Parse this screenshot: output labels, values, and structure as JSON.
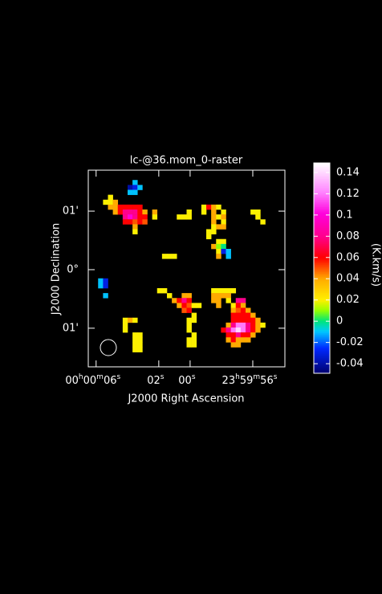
{
  "chart_data": {
    "type": "raster",
    "title": "lc-@36.mom_0-raster",
    "x_label": "J2000 Right Ascension",
    "y_label": "J2000 Declination",
    "colorbar_label": "(K.km/s)",
    "xlim": [
      6.5,
      -6.05
    ],
    "xticks": [
      {
        "value": 6,
        "label": "00h00m06s"
      },
      {
        "value": 2,
        "label": "02s"
      },
      {
        "value": 0,
        "label": "00s"
      },
      {
        "value": -4,
        "label": "23h59m56s"
      }
    ],
    "ylim": [
      -1.66,
      1.7
    ],
    "yticks": [
      {
        "value": 1,
        "label": "01'"
      },
      {
        "value": 0,
        "label": "0°"
      },
      {
        "value": -1,
        "label": "01'"
      }
    ],
    "clim": [
      -0.049,
      0.149
    ],
    "cticks": [
      0.14,
      0.12,
      0.1,
      0.08,
      0.06,
      0.04,
      0.02,
      0,
      -0.02,
      -0.04
    ],
    "cells": [
      [
        9,
        2,
        -0.01
      ],
      [
        8,
        3,
        -0.04
      ],
      [
        9,
        3,
        -0.03
      ],
      [
        10,
        3,
        -0.01
      ],
      [
        8,
        4,
        -0.01
      ],
      [
        9,
        4,
        -0.01
      ],
      [
        4,
        5,
        0.02
      ],
      [
        3,
        6,
        0.02
      ],
      [
        4,
        6,
        0.02
      ],
      [
        5,
        6,
        0.04
      ],
      [
        4,
        7,
        0.04
      ],
      [
        5,
        7,
        0.04
      ],
      [
        6,
        7,
        0.06
      ],
      [
        7,
        7,
        0.06
      ],
      [
        8,
        7,
        0.06
      ],
      [
        9,
        7,
        0.06
      ],
      [
        10,
        7,
        0.06
      ],
      [
        5,
        8,
        0.04
      ],
      [
        6,
        8,
        0.06
      ],
      [
        7,
        8,
        0.08
      ],
      [
        8,
        8,
        0.08
      ],
      [
        9,
        8,
        0.08
      ],
      [
        10,
        8,
        0.06
      ],
      [
        11,
        8,
        0.04
      ],
      [
        13,
        8,
        0.04
      ],
      [
        7,
        9,
        0.08
      ],
      [
        8,
        9,
        0.1
      ],
      [
        9,
        9,
        0.08
      ],
      [
        10,
        9,
        0.06
      ],
      [
        11,
        9,
        0.06
      ],
      [
        13,
        9,
        0.02
      ],
      [
        7,
        10,
        0.06
      ],
      [
        8,
        10,
        0.06
      ],
      [
        9,
        10,
        0.05
      ],
      [
        10,
        10,
        0.06
      ],
      [
        11,
        10,
        0.05
      ],
      [
        9,
        11,
        0.04
      ],
      [
        9,
        12,
        0.02
      ],
      [
        20,
        8,
        0.02
      ],
      [
        18,
        9,
        0.02
      ],
      [
        19,
        9,
        0.02
      ],
      [
        20,
        9,
        0.02
      ],
      [
        23,
        7,
        0.02
      ],
      [
        24,
        7,
        0.06
      ],
      [
        25,
        7,
        0.04
      ],
      [
        26,
        7,
        0.02
      ],
      [
        23,
        8,
        0.02
      ],
      [
        25,
        8,
        0.04
      ],
      [
        27,
        8,
        0.02
      ],
      [
        25,
        9,
        0.04
      ],
      [
        26,
        9,
        0.02
      ],
      [
        27,
        9,
        0.04
      ],
      [
        25,
        10,
        0.04
      ],
      [
        27,
        10,
        0.02
      ],
      [
        25,
        11,
        0.02
      ],
      [
        26,
        11,
        0.04
      ],
      [
        27,
        11,
        0.04
      ],
      [
        24,
        12,
        0.02
      ],
      [
        25,
        12,
        0.02
      ],
      [
        24,
        13,
        0.02
      ],
      [
        26,
        14,
        0.02
      ],
      [
        27,
        14,
        0.02
      ],
      [
        25,
        15,
        0.04
      ],
      [
        26,
        15,
        0.01
      ],
      [
        27,
        15,
        0
      ],
      [
        26,
        16,
        0.02
      ],
      [
        27,
        16,
        -0.03
      ],
      [
        26,
        17,
        0.04
      ],
      [
        28,
        17,
        -0.01
      ],
      [
        28,
        16,
        -0.01
      ],
      [
        33,
        8,
        0.02
      ],
      [
        34,
        8,
        0.02
      ],
      [
        34,
        9,
        0.02
      ],
      [
        35,
        10,
        0.02
      ],
      [
        15,
        17,
        0.02
      ],
      [
        16,
        17,
        0.02
      ],
      [
        17,
        17,
        0.02
      ],
      [
        2,
        22,
        -0.01
      ],
      [
        3,
        22,
        -0.03
      ],
      [
        2,
        23,
        -0.01
      ],
      [
        3,
        23,
        -0.03
      ],
      [
        3,
        25,
        -0.01
      ],
      [
        14,
        24,
        0.02
      ],
      [
        15,
        24,
        0.02
      ],
      [
        16,
        25,
        0.02
      ],
      [
        19,
        25,
        0.04
      ],
      [
        20,
        25,
        0.04
      ],
      [
        17,
        26,
        0.04
      ],
      [
        18,
        26,
        0.06
      ],
      [
        19,
        26,
        0.08
      ],
      [
        20,
        26,
        0.06
      ],
      [
        18,
        27,
        0.04
      ],
      [
        19,
        27,
        0.06
      ],
      [
        20,
        27,
        0.05
      ],
      [
        21,
        27,
        0.02
      ],
      [
        22,
        27,
        0.02
      ],
      [
        19,
        28,
        0.05
      ],
      [
        20,
        28,
        0.06
      ],
      [
        21,
        29,
        0.02
      ],
      [
        25,
        24,
        0.02
      ],
      [
        26,
        24,
        0.02
      ],
      [
        27,
        24,
        0.02
      ],
      [
        28,
        24,
        0.02
      ],
      [
        29,
        24,
        0.02
      ],
      [
        25,
        25,
        0.04
      ],
      [
        26,
        25,
        0.04
      ],
      [
        27,
        25,
        0.04
      ],
      [
        28,
        25,
        0.04
      ],
      [
        25,
        26,
        0.04
      ],
      [
        26,
        26,
        0.04
      ],
      [
        28,
        26,
        0.02
      ],
      [
        30,
        26,
        0.08
      ],
      [
        31,
        26,
        0.08
      ],
      [
        26,
        27,
        0.04
      ],
      [
        29,
        27,
        0.02
      ],
      [
        30,
        27,
        0.06
      ],
      [
        31,
        27,
        0.04
      ],
      [
        29,
        28,
        0.04
      ],
      [
        30,
        28,
        0.05
      ],
      [
        31,
        28,
        0.06
      ],
      [
        32,
        28,
        0.04
      ],
      [
        29,
        29,
        0.06
      ],
      [
        30,
        29,
        0.06
      ],
      [
        31,
        29,
        0.06
      ],
      [
        32,
        29,
        0.06
      ],
      [
        33,
        29,
        0.04
      ],
      [
        29,
        30,
        0.06
      ],
      [
        30,
        30,
        0.06
      ],
      [
        31,
        30,
        0.06
      ],
      [
        32,
        30,
        0.06
      ],
      [
        33,
        30,
        0.06
      ],
      [
        34,
        30,
        0.04
      ],
      [
        28,
        31,
        0.04
      ],
      [
        29,
        31,
        0.08
      ],
      [
        30,
        31,
        0.12
      ],
      [
        31,
        31,
        0.12
      ],
      [
        32,
        31,
        0.08
      ],
      [
        33,
        31,
        0.06
      ],
      [
        34,
        31,
        0.04
      ],
      [
        35,
        31,
        0.02
      ],
      [
        27,
        32,
        0.06
      ],
      [
        28,
        32,
        0.08
      ],
      [
        29,
        32,
        0.12
      ],
      [
        30,
        32,
        0.14
      ],
      [
        31,
        32,
        0.12
      ],
      [
        32,
        32,
        0.08
      ],
      [
        33,
        32,
        0.06
      ],
      [
        34,
        32,
        0.04
      ],
      [
        28,
        33,
        0.06
      ],
      [
        29,
        33,
        0.06
      ],
      [
        30,
        33,
        0.08
      ],
      [
        31,
        33,
        0.06
      ],
      [
        32,
        33,
        0.06
      ],
      [
        33,
        33,
        0.04
      ],
      [
        28,
        34,
        0.04
      ],
      [
        29,
        34,
        0.06
      ],
      [
        30,
        34,
        0.04
      ],
      [
        31,
        34,
        0.04
      ],
      [
        32,
        34,
        0.04
      ],
      [
        29,
        35,
        0.04
      ],
      [
        30,
        35,
        0.04
      ],
      [
        7,
        30,
        0.02
      ],
      [
        8,
        30,
        0.04
      ],
      [
        9,
        30,
        0.02
      ],
      [
        7,
        31,
        0.02
      ],
      [
        7,
        32,
        0.02
      ],
      [
        9,
        33,
        0.02
      ],
      [
        10,
        33,
        0.02
      ],
      [
        9,
        34,
        0.02
      ],
      [
        10,
        34,
        0.02
      ],
      [
        9,
        35,
        0.02
      ],
      [
        10,
        35,
        0.02
      ],
      [
        9,
        36,
        0.02
      ],
      [
        10,
        36,
        0.02
      ],
      [
        20,
        30,
        0.02
      ],
      [
        21,
        30,
        0.02
      ],
      [
        20,
        31,
        0.02
      ],
      [
        20,
        32,
        0.02
      ],
      [
        21,
        33,
        0.02
      ],
      [
        20,
        34,
        0.02
      ],
      [
        21,
        34,
        0.02
      ],
      [
        20,
        35,
        0.02
      ],
      [
        21,
        35,
        0.02
      ]
    ]
  }
}
